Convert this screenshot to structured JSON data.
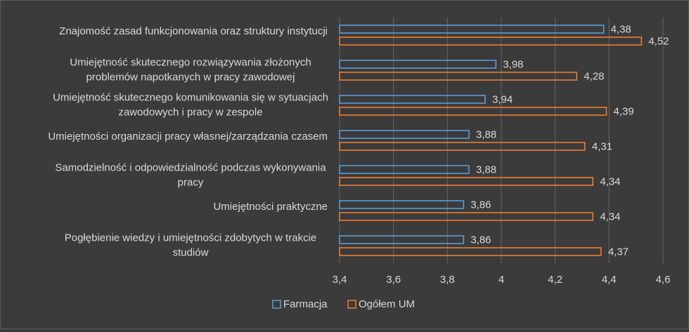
{
  "chart_data": {
    "type": "bar",
    "orientation": "horizontal",
    "categories": [
      "Znajomość zasad funkcjonowania oraz struktury instytucji",
      "Umiejętność skutecznego rozwiązywania złożonych problemów napotkanych w pracy zawodowej",
      "Umiejętność skutecznego komunikowania się w sytuacjach zawodowych i pracy w zespole",
      "Umiejętności organizacji pracy własnej/zarządzania czasem",
      "Samodzielność i odpowiedzialność podczas wykonywania pracy",
      "Umiejętności praktyczne",
      "Pogłębienie wiedzy i umiejętności zdobytych w trakcie studiów"
    ],
    "category_lines": [
      [
        "Znajomość zasad funkcjonowania oraz struktury instytucji"
      ],
      [
        "Umiejętność skutecznego rozwiązywania złożonych",
        "problemów napotkanych w pracy zawodowej"
      ],
      [
        "Umiejętność skutecznego komunikowania się w sytuacjach",
        "zawodowych i pracy w zespole"
      ],
      [
        "Umiejętności organizacji pracy własnej/zarządzania czasem"
      ],
      [
        "Samodzielność i odpowiedzialność podczas wykonywania",
        "pracy"
      ],
      [
        "Umiejętności praktyczne"
      ],
      [
        "Pogłębienie wiedzy i umiejętności zdobytych w trakcie",
        "studiów"
      ]
    ],
    "series": [
      {
        "name": "Farmacja",
        "color": "#5b9bd5",
        "values": [
          4.38,
          3.98,
          3.94,
          3.88,
          3.88,
          3.86,
          3.86
        ],
        "labels": [
          "4,38",
          "3,98",
          "3,94",
          "3,88",
          "3,88",
          "3,86",
          "3,86"
        ]
      },
      {
        "name": "Ogółem UM",
        "color": "#ed7d31",
        "values": [
          4.52,
          4.28,
          4.39,
          4.31,
          4.34,
          4.34,
          4.37
        ],
        "labels": [
          "4,52",
          "4,28",
          "4,39",
          "4,31",
          "4,34",
          "4,34",
          "4,37"
        ]
      }
    ],
    "xlim": [
      3.4,
      4.6
    ],
    "xticks": [
      3.4,
      3.6,
      3.8,
      4.0,
      4.2,
      4.4,
      4.6
    ],
    "xtick_labels": [
      "3,4",
      "3,6",
      "3,8",
      "4",
      "4,2",
      "4,4",
      "4,6"
    ],
    "grid": true,
    "legend_position": "bottom",
    "title": "",
    "xlabel": "",
    "ylabel": ""
  }
}
